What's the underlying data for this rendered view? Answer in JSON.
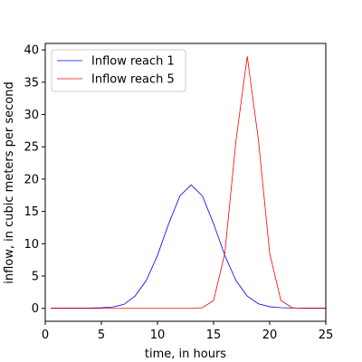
{
  "chart_data": {
    "type": "line",
    "xlabel": "time, in hours",
    "ylabel": "inflow, in cubic meters per second",
    "xlim": [
      0,
      25
    ],
    "ylim": [
      -2,
      41
    ],
    "xticks": [
      0,
      5,
      10,
      15,
      20,
      25
    ],
    "yticks": [
      0,
      5,
      10,
      15,
      20,
      25,
      30,
      35,
      40
    ],
    "grid": false,
    "legend_position": "top-left",
    "series": [
      {
        "name": "Inflow reach 1",
        "color": "#0000ff",
        "x": [
          0.5,
          1,
          2,
          3,
          4,
          5,
          6,
          7,
          8,
          9,
          10,
          11,
          12,
          13,
          14,
          15,
          16,
          17,
          18,
          19,
          20,
          21,
          22,
          23,
          24,
          25
        ],
        "y": [
          0.05,
          0.05,
          0.05,
          0.05,
          0.05,
          0.1,
          0.2,
          0.6,
          1.9,
          4.3,
          8.2,
          13.1,
          17.4,
          19.1,
          17.4,
          13.1,
          8.2,
          4.3,
          1.9,
          0.7,
          0.25,
          0.1,
          0.05,
          0.05,
          0.05,
          0.05
        ]
      },
      {
        "name": "Inflow reach 5",
        "color": "#ff0000",
        "x": [
          0.5,
          1,
          2,
          3,
          4,
          5,
          6,
          7,
          8,
          9,
          10,
          11,
          12,
          13,
          14,
          15,
          16,
          17,
          18,
          19,
          20,
          21,
          22,
          23,
          24,
          25
        ],
        "y": [
          0,
          0,
          0,
          0,
          0,
          0,
          0,
          0,
          0,
          0,
          0,
          0,
          0,
          0,
          0.1,
          1.2,
          8.5,
          26.0,
          39.0,
          26.0,
          8.5,
          1.2,
          0.1,
          0,
          0,
          0
        ]
      }
    ]
  }
}
